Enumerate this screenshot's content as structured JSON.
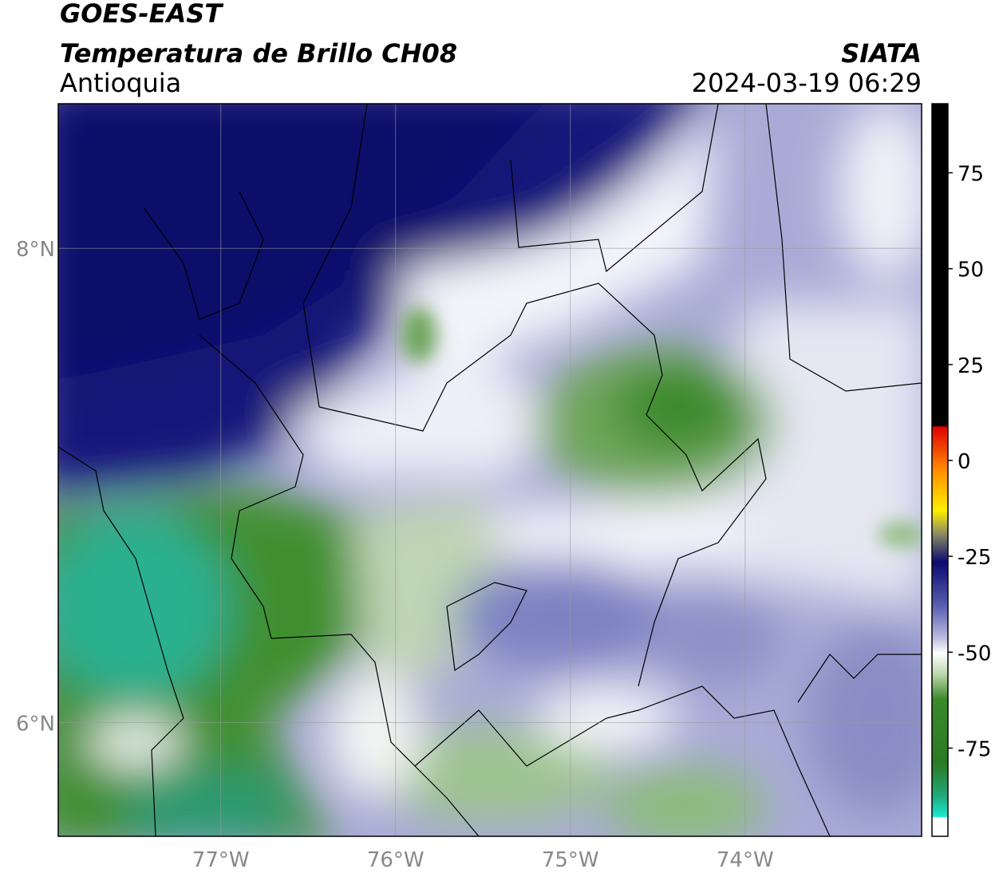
{
  "header": {
    "title": "GOES-EAST",
    "subtitle": "Temperatura de Brillo CH08",
    "region": "Antioquia",
    "source": "SIATA",
    "timestamp": "2024-03-19 06:29"
  },
  "map": {
    "latlim": [
      5.52,
      8.61
    ],
    "lonlim": [
      -77.93,
      -72.99
    ],
    "lat_ticks": [
      {
        "value": 8,
        "label": "8°N"
      },
      {
        "value": 6,
        "label": "6°N"
      }
    ],
    "lon_ticks": [
      {
        "value": -77,
        "label": "77°W"
      },
      {
        "value": -76,
        "label": "76°W"
      },
      {
        "value": -75,
        "label": "75°W"
      },
      {
        "value": -74,
        "label": "74°W"
      }
    ]
  },
  "colorbar": {
    "range": [
      -98,
      93
    ],
    "ticks": [
      75,
      50,
      25,
      0,
      -25,
      -50,
      -75
    ]
  }
}
